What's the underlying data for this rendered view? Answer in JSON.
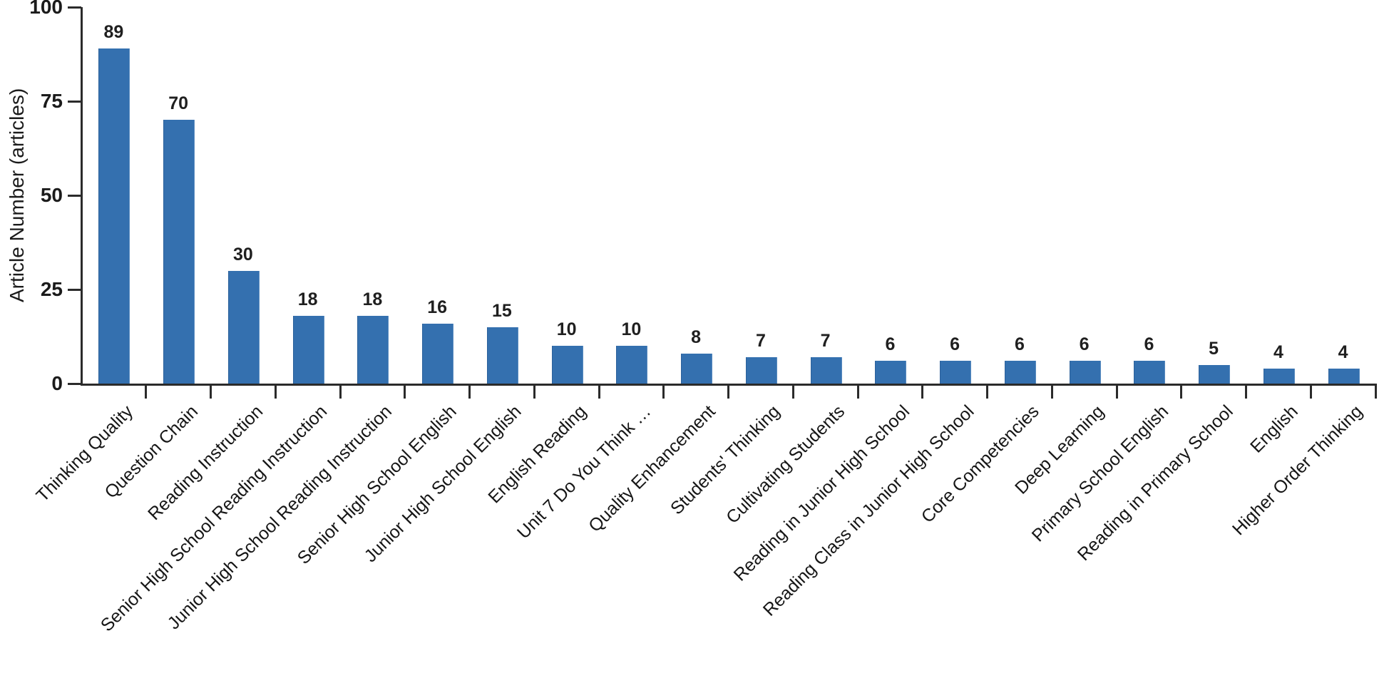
{
  "chart_data": {
    "type": "bar",
    "title": "",
    "xlabel": "",
    "ylabel": "Article Number (articles)",
    "ylim": [
      0,
      100
    ],
    "yticks": [
      0,
      25,
      50,
      75,
      100
    ],
    "grid": false,
    "legend_position": "none",
    "value_labels_shown": true,
    "bar_color": "#3470af",
    "axis_color": "#2b2b2b",
    "text_color": "#1b1b1b",
    "categories": [
      "Thinking Quality",
      "Question Chain",
      "Reading Instruction",
      "Senior High School Reading Instruction",
      "Junior High School Reading Instruction",
      "Senior High School English",
      "Junior High School English",
      "English Reading",
      "Unit 7 Do You Think …",
      "Quality Enhancement",
      "Students' Thinking",
      "Cultivating Students",
      "Reading in Junior High School",
      "Reading Class in Junior High School",
      "Core Competencies",
      "Deep Learning",
      "Primary School English",
      "Reading in Primary School",
      "English",
      "Higher Order Thinking"
    ],
    "values": [
      89,
      70,
      30,
      18,
      18,
      16,
      15,
      10,
      10,
      8,
      7,
      7,
      6,
      6,
      6,
      6,
      6,
      5,
      4,
      4
    ]
  }
}
